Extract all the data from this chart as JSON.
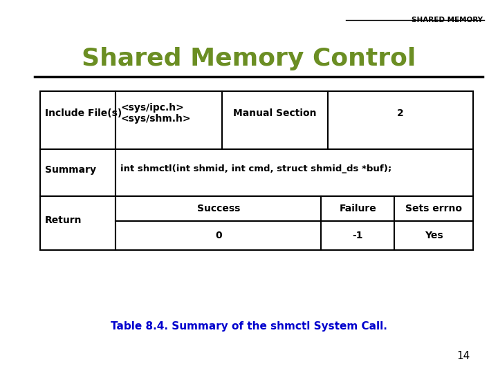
{
  "title": "Shared Memory Control",
  "header_label": "SHARED MEMORY",
  "title_color": "#6B8E23",
  "header_color": "#000000",
  "bg_color": "#FFFFFF",
  "line_color": "#000000",
  "table_caption": "Table 8.4. Summary of the shmctl System Call.",
  "caption_color": "#0000CD",
  "page_number": "14",
  "row1_col1": "Include File(s)",
  "row1_col2": "<sys/ipc.h>\n<sys/shm.h>",
  "row1_col3": "Manual Section",
  "row1_col4": "2",
  "row2_col1": "Summary",
  "row2_span": "int shmctl(int shmid, int cmd, struct shmid_ds *buf);",
  "row3_col1": "Return",
  "row3_sub_headers": [
    "Success",
    "Failure",
    "Sets errno"
  ],
  "row3_sub_data": [
    "0",
    "-1",
    "Yes"
  ]
}
